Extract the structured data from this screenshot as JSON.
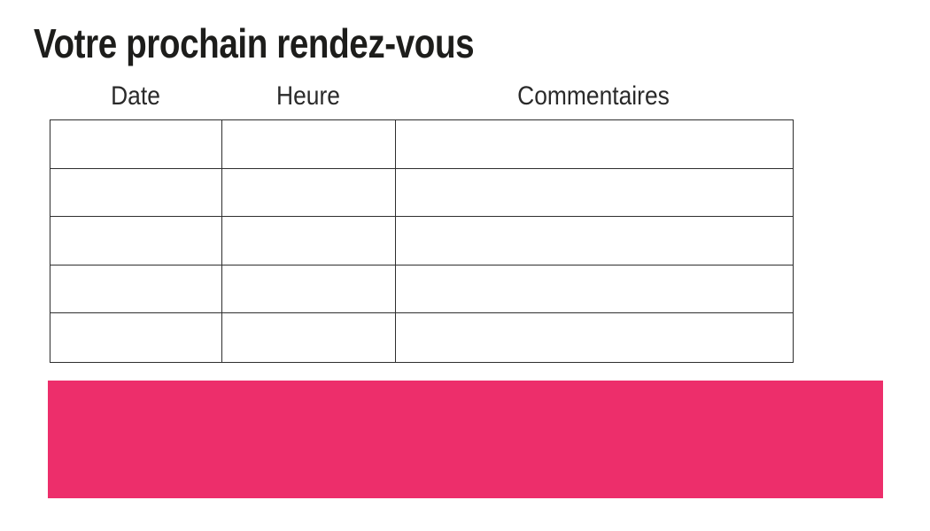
{
  "page": {
    "title": "Votre prochain rendez-vous"
  },
  "table": {
    "headers": [
      "Date",
      "Heure",
      "Commentaires"
    ],
    "rows": [
      [
        "",
        "",
        ""
      ],
      [
        "",
        "",
        ""
      ],
      [
        "",
        "",
        ""
      ],
      [
        "",
        "",
        ""
      ],
      [
        "",
        "",
        ""
      ]
    ]
  },
  "banner": {
    "color": "#ED2E6B"
  },
  "colors": {
    "background": "#ffffff",
    "text": "#1d1d1b",
    "table_border": "#2e2e2e",
    "accent_pink": "#ED2E6B"
  }
}
